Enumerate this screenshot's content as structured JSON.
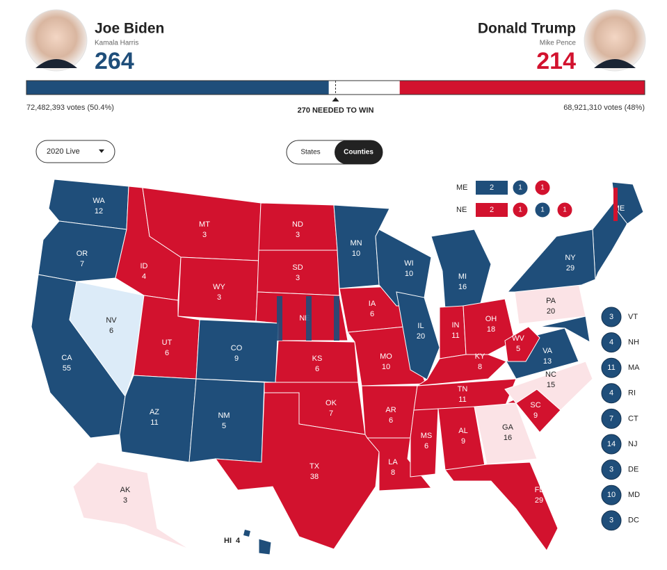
{
  "candidates": [
    {
      "name": "Joe Biden",
      "running_mate": "Kamala Harris",
      "electoral_votes": 264,
      "votes_text": "72,482,393 votes (50.4%)",
      "color": "#1f4e7a"
    },
    {
      "name": "Donald Trump",
      "running_mate": "Mike Pence",
      "electoral_votes": 214,
      "votes_text": "68,921,310 votes (48%)",
      "color": "#d2122e"
    }
  ],
  "needed": {
    "value": 270,
    "label": "270 NEEDED TO WIN"
  },
  "controls": {
    "dropdown": "2020 Live",
    "toggle": [
      "States",
      "Counties"
    ],
    "toggle_active": 1
  },
  "split_states": [
    {
      "label": "ME",
      "at_large": {
        "value": 2,
        "color": "#1f4e7a"
      },
      "districts": [
        {
          "value": 1,
          "color": "#1f4e7a"
        },
        {
          "value": 1,
          "color": "#d2122e"
        }
      ]
    },
    {
      "label": "NE",
      "at_large": {
        "value": 2,
        "color": "#d2122e"
      },
      "districts": [
        {
          "value": 1,
          "color": "#d2122e"
        },
        {
          "value": 1,
          "color": "#1f4e7a"
        },
        {
          "value": 1,
          "color": "#d2122e"
        }
      ]
    }
  ],
  "states": [
    {
      "abbr": "WA",
      "ev": 12,
      "color": "#1f4e7a"
    },
    {
      "abbr": "OR",
      "ev": 7,
      "color": "#1f4e7a"
    },
    {
      "abbr": "CA",
      "ev": 55,
      "color": "#1f4e7a"
    },
    {
      "abbr": "NV",
      "ev": 6,
      "color": "#dcebf8"
    },
    {
      "abbr": "ID",
      "ev": 4,
      "color": "#d2122e"
    },
    {
      "abbr": "MT",
      "ev": 3,
      "color": "#d2122e"
    },
    {
      "abbr": "WY",
      "ev": 3,
      "color": "#d2122e"
    },
    {
      "abbr": "UT",
      "ev": 6,
      "color": "#d2122e"
    },
    {
      "abbr": "CO",
      "ev": 9,
      "color": "#1f4e7a"
    },
    {
      "abbr": "AZ",
      "ev": 11,
      "color": "#1f4e7a"
    },
    {
      "abbr": "NM",
      "ev": 5,
      "color": "#1f4e7a"
    },
    {
      "abbr": "ND",
      "ev": 3,
      "color": "#d2122e"
    },
    {
      "abbr": "SD",
      "ev": 3,
      "color": "#d2122e"
    },
    {
      "abbr": "NE",
      "color": "#d2122e"
    },
    {
      "abbr": "KS",
      "ev": 6,
      "color": "#d2122e"
    },
    {
      "abbr": "OK",
      "ev": 7,
      "color": "#d2122e"
    },
    {
      "abbr": "TX",
      "ev": 38,
      "color": "#d2122e"
    },
    {
      "abbr": "MN",
      "ev": 10,
      "color": "#1f4e7a"
    },
    {
      "abbr": "IA",
      "ev": 6,
      "color": "#d2122e"
    },
    {
      "abbr": "MO",
      "ev": 10,
      "color": "#d2122e"
    },
    {
      "abbr": "AR",
      "ev": 6,
      "color": "#d2122e"
    },
    {
      "abbr": "LA",
      "ev": 8,
      "color": "#d2122e"
    },
    {
      "abbr": "WI",
      "ev": 10,
      "color": "#1f4e7a"
    },
    {
      "abbr": "IL",
      "ev": 20,
      "color": "#1f4e7a"
    },
    {
      "abbr": "MI",
      "ev": 16,
      "color": "#1f4e7a"
    },
    {
      "abbr": "IN",
      "ev": 11,
      "color": "#d2122e"
    },
    {
      "abbr": "OH",
      "ev": 18,
      "color": "#d2122e"
    },
    {
      "abbr": "KY",
      "ev": 8,
      "color": "#d2122e"
    },
    {
      "abbr": "TN",
      "ev": 11,
      "color": "#d2122e"
    },
    {
      "abbr": "MS",
      "ev": 6,
      "color": "#d2122e"
    },
    {
      "abbr": "AL",
      "ev": 9,
      "color": "#d2122e"
    },
    {
      "abbr": "GA",
      "ev": 16,
      "color": "#fbe3e6"
    },
    {
      "abbr": "FL",
      "ev": 29,
      "color": "#d2122e"
    },
    {
      "abbr": "SC",
      "ev": 9,
      "color": "#d2122e"
    },
    {
      "abbr": "NC",
      "ev": 15,
      "color": "#fbe3e6"
    },
    {
      "abbr": "VA",
      "ev": 13,
      "color": "#1f4e7a"
    },
    {
      "abbr": "WV",
      "ev": 5,
      "color": "#d2122e"
    },
    {
      "abbr": "PA",
      "ev": 20,
      "color": "#fbe3e6"
    },
    {
      "abbr": "NY",
      "ev": 29,
      "color": "#1f4e7a"
    },
    {
      "abbr": "ME",
      "color": "#1f4e7a"
    },
    {
      "abbr": "AK",
      "ev": 3,
      "color": "#fbe3e6"
    },
    {
      "abbr": "HI",
      "ev": 4,
      "color": "#1f4e7a"
    }
  ],
  "small_states": [
    {
      "abbr": "VT",
      "ev": 3,
      "color": "#1f4e7a"
    },
    {
      "abbr": "NH",
      "ev": 4,
      "color": "#1f4e7a"
    },
    {
      "abbr": "MA",
      "ev": 11,
      "color": "#1f4e7a"
    },
    {
      "abbr": "RI",
      "ev": 4,
      "color": "#1f4e7a"
    },
    {
      "abbr": "CT",
      "ev": 7,
      "color": "#1f4e7a"
    },
    {
      "abbr": "NJ",
      "ev": 14,
      "color": "#1f4e7a"
    },
    {
      "abbr": "DE",
      "ev": 3,
      "color": "#1f4e7a"
    },
    {
      "abbr": "MD",
      "ev": 10,
      "color": "#1f4e7a"
    },
    {
      "abbr": "DC",
      "ev": 3,
      "color": "#1f4e7a"
    }
  ]
}
